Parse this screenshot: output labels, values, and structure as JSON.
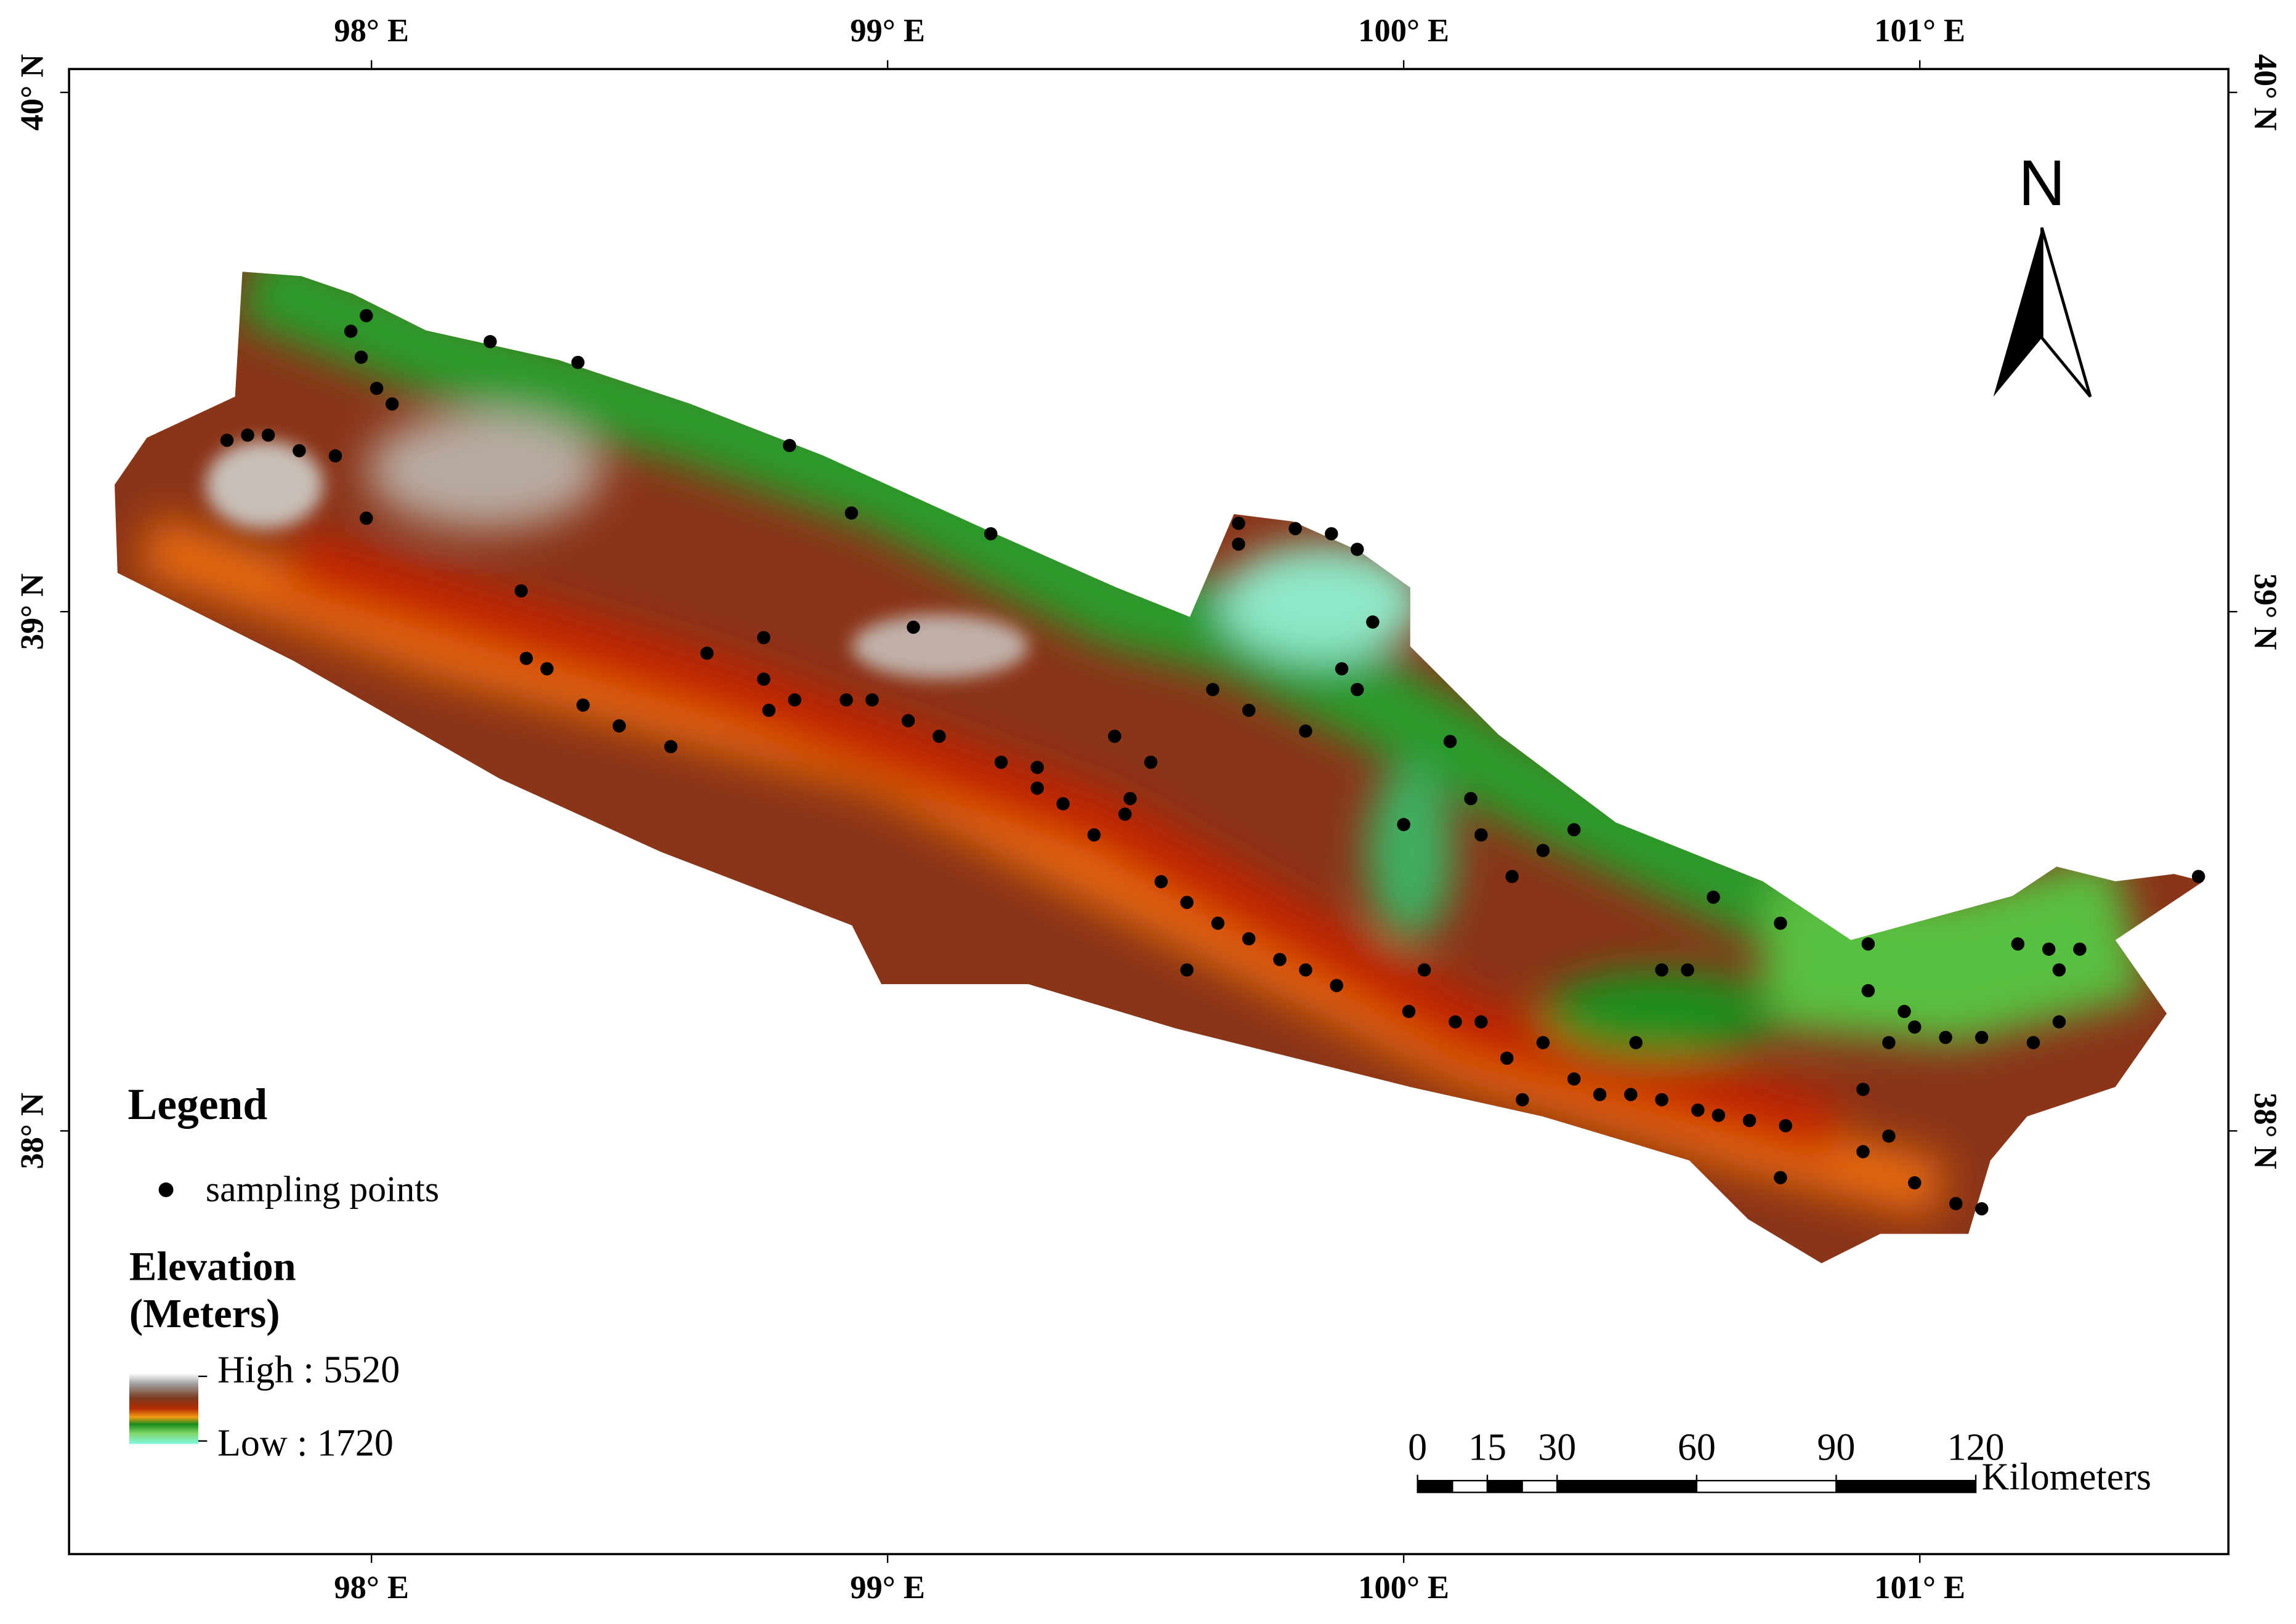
{
  "map": {
    "xlim": [
      97.414,
      101.598
    ],
    "ylim": [
      37.185,
      40.045
    ],
    "xticks": [
      {
        "value": 98,
        "label": "98° E"
      },
      {
        "value": 99,
        "label": "99° E"
      },
      {
        "value": 100,
        "label": "100° E"
      },
      {
        "value": 101,
        "label": "101° E"
      }
    ],
    "yticks": [
      {
        "value": 40,
        "label": "40° N"
      },
      {
        "value": 39,
        "label": "39° N"
      },
      {
        "value": 38,
        "label": "38° N"
      }
    ],
    "north_arrow": "N",
    "legend": {
      "title": "Legend",
      "points_label": "sampling points",
      "elevation_title": [
        "Elevation",
        "(Meters)"
      ],
      "high": {
        "value": 5520,
        "label": "High : 5520"
      },
      "low": {
        "value": 1720,
        "label": "Low : 1720"
      }
    },
    "scale_bar": {
      "ticks": [
        0,
        15,
        30,
        60,
        90,
        120
      ],
      "unit": "Kilometers"
    },
    "sampling_points": {
      "color": "#000000",
      "lon": [
        97.72,
        97.76,
        97.8,
        97.86,
        97.93,
        97.99,
        97.96,
        97.98,
        98.01,
        98.04,
        97.99,
        98.23,
        98.4,
        98.81,
        98.93,
        99.2,
        98.29,
        98.3,
        98.34,
        98.41,
        98.48,
        98.58,
        98.65,
        98.76,
        98.76,
        98.77,
        98.82,
        98.92,
        98.97,
        99.04,
        99.1,
        99.05,
        99.22,
        99.29,
        99.29,
        99.34,
        99.4,
        99.46,
        99.47,
        99.51,
        99.44,
        99.53,
        99.58,
        99.64,
        99.7,
        99.76,
        99.81,
        99.87,
        99.58,
        99.68,
        99.68,
        99.79,
        99.86,
        99.91,
        99.94,
        99.88,
        99.91,
        99.81,
        99.7,
        99.63,
        100.0,
        100.09,
        100.13,
        100.15,
        100.21,
        100.27,
        100.33,
        100.01,
        100.04,
        100.1,
        100.15,
        100.2,
        100.23,
        100.27,
        100.33,
        100.38,
        100.44,
        100.5,
        100.57,
        100.61,
        100.67,
        100.74,
        100.6,
        100.73,
        100.5,
        100.55,
        100.45,
        100.9,
        100.9,
        100.94,
        100.97,
        100.99,
        101.05,
        101.12,
        100.89,
        100.89,
        100.94,
        100.99,
        101.07,
        101.12,
        101.19,
        101.25,
        101.27,
        101.22,
        101.27,
        101.31,
        101.54,
        100.73
      ],
      "lat": [
        39.33,
        39.34,
        39.34,
        39.31,
        39.3,
        39.57,
        39.54,
        39.49,
        39.43,
        39.4,
        39.18,
        39.52,
        39.48,
        39.32,
        39.19,
        39.15,
        39.04,
        38.91,
        38.89,
        38.82,
        38.78,
        38.74,
        38.92,
        38.95,
        38.87,
        38.81,
        38.83,
        38.83,
        38.83,
        38.79,
        38.76,
        38.97,
        38.71,
        38.7,
        38.66,
        38.63,
        38.57,
        38.61,
        38.64,
        38.71,
        38.76,
        38.48,
        38.44,
        38.4,
        38.37,
        38.33,
        38.31,
        38.28,
        38.31,
        39.17,
        39.13,
        39.16,
        39.15,
        39.12,
        38.98,
        38.89,
        38.85,
        38.77,
        38.81,
        38.85,
        38.59,
        38.75,
        38.64,
        38.57,
        38.49,
        38.54,
        38.58,
        38.23,
        38.31,
        38.21,
        38.21,
        38.14,
        38.06,
        38.17,
        38.1,
        38.07,
        38.07,
        38.06,
        38.04,
        38.03,
        38.02,
        38.01,
        38.45,
        38.4,
        38.31,
        38.31,
        38.17,
        38.36,
        38.27,
        38.17,
        38.23,
        38.2,
        38.18,
        38.18,
        38.08,
        37.96,
        37.99,
        37.9,
        37.86,
        37.85,
        38.36,
        38.35,
        38.31,
        38.17,
        38.21,
        38.35,
        38.49,
        37.91
      ]
    }
  }
}
